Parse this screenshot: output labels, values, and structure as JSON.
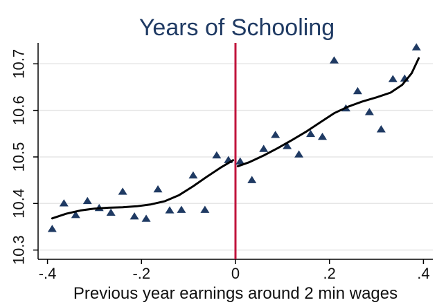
{
  "chart_data": {
    "type": "scatter",
    "title": "Years of Schooling",
    "xlabel": "Previous year earnings around 2 min wages",
    "ylabel": "",
    "xlim": [
      -0.42,
      0.42
    ],
    "ylim": [
      10.295,
      10.745
    ],
    "x_ticks": [
      {
        "value": -0.4,
        "label": "-.4"
      },
      {
        "value": -0.2,
        "label": "-.2"
      },
      {
        "value": 0,
        "label": "0"
      },
      {
        "value": 0.2,
        "label": ".2"
      },
      {
        "value": 0.4,
        "label": ".4"
      }
    ],
    "y_ticks": [
      {
        "value": 10.3,
        "label": "10.3"
      },
      {
        "value": 10.4,
        "label": "10.4"
      },
      {
        "value": 10.5,
        "label": "10.5"
      },
      {
        "value": 10.6,
        "label": "10.6"
      },
      {
        "value": 10.7,
        "label": "10.7"
      }
    ],
    "grid": "horizontal",
    "cutoff_x": 0,
    "colors": {
      "markers": "#1f3a63",
      "fit_line": "#000000",
      "cutoff_line": "#c0143c",
      "grid": "#e6e6e6",
      "title": "#1f3a63"
    },
    "series": [
      {
        "kind": "markers",
        "marker": "triangle",
        "x": [
          -0.39,
          -0.365,
          -0.34,
          -0.315,
          -0.29,
          -0.265,
          -0.24,
          -0.215,
          -0.19,
          -0.165,
          -0.14,
          -0.115,
          -0.09,
          -0.065,
          -0.04,
          -0.015,
          0.01,
          0.035,
          0.06,
          0.085,
          0.11,
          0.135,
          0.16,
          0.185,
          0.21,
          0.235,
          0.26,
          0.285,
          0.31,
          0.335,
          0.36,
          0.385
        ],
        "y": [
          10.345,
          10.4,
          10.375,
          10.405,
          10.39,
          10.38,
          10.425,
          10.372,
          10.367,
          10.43,
          10.385,
          10.386,
          10.46,
          10.386,
          10.503,
          10.493,
          10.49,
          10.45,
          10.517,
          10.547,
          10.523,
          10.505,
          10.549,
          10.543,
          10.707,
          10.604,
          10.641,
          10.596,
          10.559,
          10.667,
          10.668,
          10.735
        ]
      },
      {
        "kind": "fit-left",
        "x": [
          -0.39,
          -0.36,
          -0.33,
          -0.3,
          -0.27,
          -0.24,
          -0.21,
          -0.18,
          -0.15,
          -0.12,
          -0.09,
          -0.06,
          -0.03,
          -0.005
        ],
        "y": [
          10.368,
          10.378,
          10.385,
          10.389,
          10.391,
          10.392,
          10.394,
          10.398,
          10.405,
          10.418,
          10.437,
          10.458,
          10.478,
          10.493
        ]
      },
      {
        "kind": "fit-right",
        "x": [
          0.005,
          0.03,
          0.06,
          0.09,
          0.12,
          0.15,
          0.18,
          0.21,
          0.24,
          0.27,
          0.3,
          0.33,
          0.355,
          0.375,
          0.39
        ],
        "y": [
          10.48,
          10.489,
          10.503,
          10.519,
          10.536,
          10.554,
          10.574,
          10.594,
          10.608,
          10.619,
          10.628,
          10.638,
          10.655,
          10.68,
          10.712
        ]
      }
    ]
  }
}
